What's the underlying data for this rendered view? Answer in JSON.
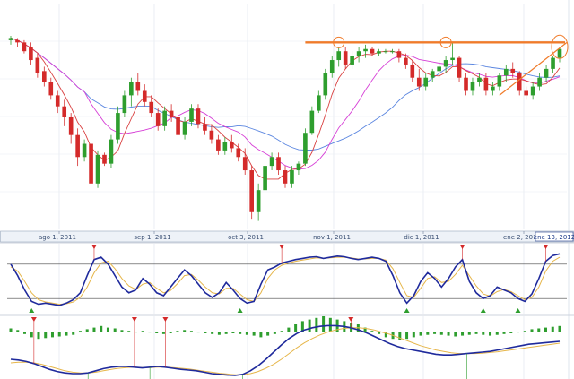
{
  "chart_data": [
    {
      "panel": "price",
      "type": "candlestick",
      "x_tick_labels": [
        "ago 1, 2011",
        "sep 1, 2011",
        "oct 3, 2011",
        "nov 1, 2011",
        "dic 1, 2011",
        "ene 2, 2012"
      ],
      "current_date_label": "ene 13, 2012",
      "y_range": [
        0,
        100
      ],
      "grid": true,
      "candles": [
        {
          "o": 85,
          "h": 87,
          "l": 83,
          "c": 86
        },
        {
          "o": 85,
          "h": 86,
          "l": 82,
          "c": 84
        },
        {
          "o": 84,
          "h": 85,
          "l": 79,
          "c": 80
        },
        {
          "o": 82,
          "h": 84,
          "l": 74,
          "c": 76
        },
        {
          "o": 77,
          "h": 79,
          "l": 68,
          "c": 70
        },
        {
          "o": 71,
          "h": 73,
          "l": 64,
          "c": 66
        },
        {
          "o": 66,
          "h": 68,
          "l": 58,
          "c": 60
        },
        {
          "o": 60,
          "h": 62,
          "l": 52,
          "c": 55
        },
        {
          "o": 55,
          "h": 58,
          "l": 46,
          "c": 50
        },
        {
          "o": 50,
          "h": 52,
          "l": 38,
          "c": 42
        },
        {
          "o": 42,
          "h": 45,
          "l": 28,
          "c": 32
        },
        {
          "o": 32,
          "h": 40,
          "l": 30,
          "c": 38
        },
        {
          "o": 38,
          "h": 40,
          "l": 18,
          "c": 20
        },
        {
          "o": 20,
          "h": 35,
          "l": 18,
          "c": 33
        },
        {
          "o": 33,
          "h": 34,
          "l": 28,
          "c": 29
        },
        {
          "o": 29,
          "h": 42,
          "l": 27,
          "c": 40
        },
        {
          "o": 40,
          "h": 55,
          "l": 38,
          "c": 52
        },
        {
          "o": 52,
          "h": 62,
          "l": 50,
          "c": 60
        },
        {
          "o": 60,
          "h": 68,
          "l": 55,
          "c": 66
        },
        {
          "o": 66,
          "h": 70,
          "l": 60,
          "c": 62
        },
        {
          "o": 62,
          "h": 65,
          "l": 55,
          "c": 57
        },
        {
          "o": 57,
          "h": 60,
          "l": 50,
          "c": 52
        },
        {
          "o": 52,
          "h": 54,
          "l": 44,
          "c": 46
        },
        {
          "o": 46,
          "h": 55,
          "l": 44,
          "c": 53
        },
        {
          "o": 53,
          "h": 56,
          "l": 48,
          "c": 50
        },
        {
          "o": 50,
          "h": 52,
          "l": 40,
          "c": 42
        },
        {
          "o": 42,
          "h": 50,
          "l": 40,
          "c": 48
        },
        {
          "o": 48,
          "h": 56,
          "l": 46,
          "c": 54
        },
        {
          "o": 54,
          "h": 56,
          "l": 45,
          "c": 47
        },
        {
          "o": 47,
          "h": 50,
          "l": 42,
          "c": 44
        },
        {
          "o": 44,
          "h": 47,
          "l": 38,
          "c": 40
        },
        {
          "o": 40,
          "h": 42,
          "l": 33,
          "c": 35
        },
        {
          "o": 35,
          "h": 41,
          "l": 33,
          "c": 39
        },
        {
          "o": 39,
          "h": 42,
          "l": 34,
          "c": 36
        },
        {
          "o": 36,
          "h": 38,
          "l": 30,
          "c": 32
        },
        {
          "o": 32,
          "h": 36,
          "l": 24,
          "c": 26
        },
        {
          "o": 26,
          "h": 28,
          "l": 4,
          "c": 7
        },
        {
          "o": 7,
          "h": 20,
          "l": 3,
          "c": 17
        },
        {
          "o": 17,
          "h": 30,
          "l": 15,
          "c": 28
        },
        {
          "o": 28,
          "h": 34,
          "l": 26,
          "c": 32
        },
        {
          "o": 32,
          "h": 34,
          "l": 24,
          "c": 26
        },
        {
          "o": 26,
          "h": 28,
          "l": 18,
          "c": 20
        },
        {
          "o": 20,
          "h": 28,
          "l": 18,
          "c": 26
        },
        {
          "o": 26,
          "h": 30,
          "l": 24,
          "c": 29
        },
        {
          "o": 29,
          "h": 45,
          "l": 28,
          "c": 43
        },
        {
          "o": 43,
          "h": 55,
          "l": 42,
          "c": 53
        },
        {
          "o": 53,
          "h": 62,
          "l": 52,
          "c": 60
        },
        {
          "o": 60,
          "h": 72,
          "l": 58,
          "c": 70
        },
        {
          "o": 70,
          "h": 78,
          "l": 68,
          "c": 76
        },
        {
          "o": 76,
          "h": 82,
          "l": 73,
          "c": 80
        },
        {
          "o": 80,
          "h": 82,
          "l": 72,
          "c": 74
        },
        {
          "o": 74,
          "h": 80,
          "l": 72,
          "c": 78
        },
        {
          "o": 78,
          "h": 82,
          "l": 75,
          "c": 80
        },
        {
          "o": 80,
          "h": 83,
          "l": 77,
          "c": 81
        },
        {
          "o": 81,
          "h": 82,
          "l": 78,
          "c": 79
        },
        {
          "o": 79,
          "h": 81,
          "l": 78,
          "c": 80
        },
        {
          "o": 80,
          "h": 81,
          "l": 79,
          "c": 80
        },
        {
          "o": 80,
          "h": 81,
          "l": 79,
          "c": 80
        },
        {
          "o": 80,
          "h": 81,
          "l": 75,
          "c": 77
        },
        {
          "o": 77,
          "h": 79,
          "l": 72,
          "c": 74
        },
        {
          "o": 74,
          "h": 76,
          "l": 66,
          "c": 68
        },
        {
          "o": 68,
          "h": 72,
          "l": 62,
          "c": 64
        },
        {
          "o": 64,
          "h": 70,
          "l": 62,
          "c": 68
        },
        {
          "o": 68,
          "h": 72,
          "l": 66,
          "c": 71
        },
        {
          "o": 71,
          "h": 76,
          "l": 68,
          "c": 73
        },
        {
          "o": 73,
          "h": 78,
          "l": 70,
          "c": 76
        },
        {
          "o": 76,
          "h": 84,
          "l": 74,
          "c": 77
        },
        {
          "o": 77,
          "h": 78,
          "l": 66,
          "c": 68
        },
        {
          "o": 68,
          "h": 70,
          "l": 60,
          "c": 62
        },
        {
          "o": 62,
          "h": 68,
          "l": 60,
          "c": 66
        },
        {
          "o": 66,
          "h": 70,
          "l": 64,
          "c": 68
        },
        {
          "o": 68,
          "h": 70,
          "l": 60,
          "c": 62
        },
        {
          "o": 62,
          "h": 66,
          "l": 60,
          "c": 64
        },
        {
          "o": 64,
          "h": 70,
          "l": 62,
          "c": 69
        },
        {
          "o": 69,
          "h": 74,
          "l": 66,
          "c": 72
        },
        {
          "o": 72,
          "h": 75,
          "l": 68,
          "c": 70
        },
        {
          "o": 70,
          "h": 71,
          "l": 60,
          "c": 62
        },
        {
          "o": 62,
          "h": 64,
          "l": 58,
          "c": 60
        },
        {
          "o": 60,
          "h": 66,
          "l": 58,
          "c": 64
        },
        {
          "o": 64,
          "h": 70,
          "l": 62,
          "c": 68
        },
        {
          "o": 68,
          "h": 74,
          "l": 66,
          "c": 72
        },
        {
          "o": 72,
          "h": 78,
          "l": 70,
          "c": 77
        },
        {
          "o": 77,
          "h": 82,
          "l": 75,
          "c": 81
        }
      ],
      "resistance_level": 84,
      "highlight_circles": [
        "nov 2011",
        "dic 2011",
        "ene 2012"
      ],
      "colors": {
        "up": "#2e9e2e",
        "down": "#d42a2a",
        "ma_fast": "#d94040",
        "ma_mid": "#d63fd6",
        "ma_slow": "#5b86e0",
        "resistance": "#f07b2a"
      }
    },
    {
      "panel": "stochastic",
      "type": "line",
      "y_range": [
        0,
        100
      ],
      "upper_band": 80,
      "lower_band": 20,
      "series": [
        {
          "values": [
            80,
            60,
            35,
            15,
            10,
            12,
            10,
            8,
            12,
            18,
            30,
            60,
            88,
            92,
            80,
            60,
            40,
            30,
            35,
            55,
            45,
            30,
            25,
            40,
            55,
            70,
            60,
            45,
            30,
            22,
            30,
            48,
            35,
            20,
            12,
            15,
            45,
            70,
            75,
            82,
            85,
            88,
            90,
            92,
            93,
            90,
            92,
            94,
            93,
            90,
            88,
            90,
            92,
            90,
            85,
            60,
            30,
            12,
            25,
            50,
            65,
            55,
            40,
            55,
            75,
            88,
            50,
            30,
            20,
            25,
            40,
            35,
            30,
            20,
            15,
            28,
            55,
            85,
            95,
            98
          ]
        },
        {
          "values": [
            75,
            68,
            50,
            30,
            18,
            14,
            12,
            10,
            11,
            14,
            22,
            40,
            65,
            82,
            85,
            72,
            55,
            42,
            36,
            45,
            48,
            38,
            30,
            34,
            46,
            60,
            62,
            52,
            40,
            30,
            28,
            38,
            38,
            28,
            18,
            15,
            30,
            55,
            70,
            78,
            82,
            85,
            87,
            89,
            91,
            90,
            91,
            92,
            92,
            91,
            89,
            89,
            90,
            90,
            87,
            72,
            48,
            25,
            22,
            38,
            55,
            58,
            48,
            50,
            62,
            78,
            60,
            42,
            28,
            24,
            32,
            36,
            32,
            25,
            18,
            22,
            40,
            68,
            85,
            92
          ]
        }
      ],
      "signal_markers": {
        "down": 7,
        "up": 8
      },
      "colors": {
        "main": "#1f2a9c",
        "signal": "#e6b64a",
        "down_marker": "#d42a2a",
        "up_marker": "#2e9e2e"
      }
    },
    {
      "panel": "macd",
      "type": "bar+line",
      "y_range": [
        -100,
        100
      ],
      "histogram": [
        5,
        3,
        -2,
        -6,
        -8,
        -7,
        -6,
        -5,
        -4,
        -3,
        2,
        4,
        6,
        8,
        6,
        5,
        3,
        2,
        1,
        2,
        1,
        -1,
        -2,
        -1,
        2,
        3,
        2,
        1,
        -1,
        -2,
        -3,
        -2,
        -1,
        -2,
        -3,
        -4,
        -6,
        -4,
        -2,
        2,
        6,
        10,
        14,
        16,
        18,
        20,
        18,
        16,
        14,
        12,
        10,
        6,
        2,
        -2,
        -6,
        -8,
        -10,
        -8,
        -6,
        -4,
        -3,
        -2,
        -3,
        -4,
        -5,
        -4,
        -3,
        -2,
        -3,
        -4,
        -3,
        -2,
        -1,
        1,
        2,
        4,
        5,
        6,
        7,
        8
      ],
      "series": [
        {
          "values": [
            -30,
            -32,
            -36,
            -42,
            -50,
            -58,
            -64,
            -68,
            -70,
            -70,
            -68,
            -62,
            -56,
            -52,
            -50,
            -50,
            -52,
            -54,
            -52,
            -50,
            -52,
            -55,
            -58,
            -60,
            -62,
            -66,
            -70,
            -72,
            -74,
            -75,
            -72,
            -62,
            -48,
            -30,
            -10,
            10,
            28,
            42,
            52,
            58,
            62,
            64,
            64,
            62,
            58,
            52,
            44,
            34,
            24,
            14,
            6,
            0,
            -4,
            -8,
            -12,
            -16,
            -18,
            -18,
            -16,
            -14,
            -12,
            -10,
            -8,
            -4,
            0,
            4,
            8,
            12,
            14,
            16,
            18,
            20
          ]
        },
        {
          "values": [
            -40,
            -38,
            -38,
            -40,
            -44,
            -50,
            -56,
            -62,
            -66,
            -68,
            -68,
            -66,
            -62,
            -58,
            -55,
            -53,
            -52,
            -53,
            -53,
            -52,
            -52,
            -53,
            -55,
            -57,
            -60,
            -63,
            -66,
            -69,
            -71,
            -73,
            -73,
            -70,
            -64,
            -55,
            -44,
            -30,
            -14,
            2,
            16,
            28,
            38,
            46,
            52,
            56,
            58,
            58,
            56,
            52,
            46,
            40,
            32,
            24,
            16,
            8,
            2,
            -4,
            -8,
            -12,
            -14,
            -14,
            -14,
            -13,
            -11,
            -9,
            -6,
            -3,
            0,
            3,
            6,
            9,
            12,
            15
          ]
        }
      ],
      "colors": {
        "hist": "#2e9e2e",
        "macd": "#1f2a9c",
        "signal": "#e6b64a"
      }
    }
  ]
}
